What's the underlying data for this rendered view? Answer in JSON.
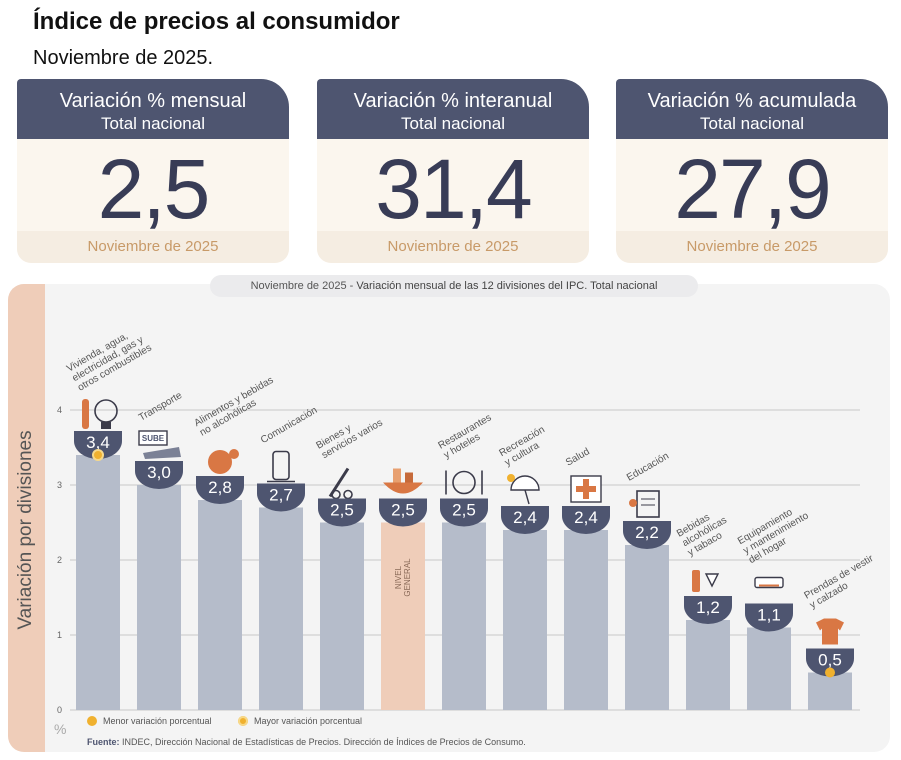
{
  "header": {
    "title": "Índice de precios al consumidor",
    "subtitle": "Noviembre de 2025."
  },
  "cards": [
    {
      "label": "Variación % mensual",
      "sublabel": "Total nacional",
      "value": "2,5",
      "period": "Noviembre de 2025"
    },
    {
      "label": "Variación % interanual",
      "sublabel": "Total nacional",
      "value": "31,4",
      "period": "Noviembre de 2025"
    },
    {
      "label": "Variación % acumulada",
      "sublabel": "Total nacional",
      "value": "27,9",
      "period": "Noviembre de 2025"
    }
  ],
  "colors": {
    "bar": "#b5bcca",
    "highlight": "#efcdb9",
    "badge": "#4e5570",
    "dot": "#f0b12f",
    "icon": "#d97744",
    "grid": "#c9c9c9"
  },
  "chart_data": {
    "type": "bar",
    "title_period": "Noviembre de 2025",
    "title": "Variación mensual de las 12 divisiones del IPC. Total nacional",
    "ylabel": "Variación por divisiones",
    "yunit": "%",
    "ylim": [
      0,
      4
    ],
    "yticks": [
      "0",
      "1",
      "2",
      "3",
      "4"
    ],
    "categories": [
      {
        "lines": [
          "Vivienda, agua,",
          "electricidad, gas y",
          "otros combustibles"
        ],
        "value": 3.4,
        "label": "3,4",
        "icon": "lightbulb-icon",
        "marker": "mayor"
      },
      {
        "lines": [
          "Transporte"
        ],
        "value": 3.0,
        "label": "3,0",
        "icon": "sube-card-icon"
      },
      {
        "lines": [
          "Alimentos y bebidas",
          "no alcohólicas"
        ],
        "value": 2.8,
        "label": "2,8",
        "icon": "food-icon"
      },
      {
        "lines": [
          "Comunicación"
        ],
        "value": 2.7,
        "label": "2,7",
        "icon": "phone-icon"
      },
      {
        "lines": [
          "Bienes y",
          "servicios varios"
        ],
        "value": 2.5,
        "label": "2,5",
        "icon": "comb-scissors-icon"
      },
      {
        "lines": [],
        "value": 2.5,
        "label": "2,5",
        "icon": "shopping-basket-icon",
        "general": true,
        "bar_text": [
          "NIVEL",
          "GENERAL"
        ]
      },
      {
        "lines": [
          "Restaurantes",
          "y hoteles"
        ],
        "value": 2.5,
        "label": "2,5",
        "icon": "plate-cutlery-icon"
      },
      {
        "lines": [
          "Recreación",
          "y cultura"
        ],
        "value": 2.4,
        "label": "2,4",
        "icon": "beach-umbrella-icon"
      },
      {
        "lines": [
          "Salud"
        ],
        "value": 2.4,
        "label": "2,4",
        "icon": "first-aid-icon"
      },
      {
        "lines": [
          "Educación"
        ],
        "value": 2.2,
        "label": "2,2",
        "icon": "notebook-icon"
      },
      {
        "lines": [
          "Bebidas",
          "alcohólicas",
          "y tabaco"
        ],
        "value": 1.2,
        "label": "1,2",
        "icon": "wine-icon"
      },
      {
        "lines": [
          "Equipamiento",
          "y mantenimiento",
          "del hogar"
        ],
        "value": 1.1,
        "label": "1,1",
        "icon": "air-conditioner-icon"
      },
      {
        "lines": [
          "Prendas de vestir",
          "y calzado"
        ],
        "value": 0.5,
        "label": "0,5",
        "icon": "tshirt-icon",
        "marker": "menor"
      }
    ],
    "legend": {
      "menor": "Menor variación porcentual",
      "mayor": "Mayor variación porcentual"
    }
  },
  "source": {
    "label": "Fuente:",
    "text": "INDEC, Dirección Nacional de Estadísticas de Precios. Dirección de Índices de Precios de Consumo."
  }
}
